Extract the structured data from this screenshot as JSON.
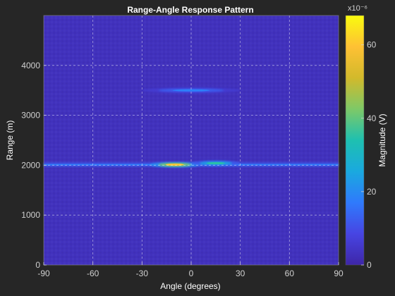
{
  "chart_data": {
    "type": "heatmap",
    "title": "Range-Angle Response Pattern",
    "xlabel": "Angle (degrees)",
    "ylabel": "Range (m)",
    "xlim": [
      -90,
      90
    ],
    "ylim": [
      0,
      5000
    ],
    "x_ticks": [
      -90,
      -60,
      -30,
      0,
      30,
      60,
      90
    ],
    "y_ticks": [
      0,
      1000,
      2000,
      3000,
      4000
    ],
    "grid": true,
    "colorbar": {
      "label": "Magnitude (V)",
      "exponent_label": "x10⁻⁶",
      "ticks": [
        0,
        20,
        40,
        60
      ],
      "clim": [
        0,
        68
      ],
      "colormap": [
        "#3e26a8",
        "#4745e3",
        "#2f7afc",
        "#1aa9df",
        "#1ec0b0",
        "#7ec967",
        "#d2b92b",
        "#fec134",
        "#f9fb0e"
      ]
    },
    "features": [
      {
        "name": "Target return near 2000 m",
        "range_m": 2010,
        "angle_deg": -10,
        "peak_magnitude": 60,
        "extent_deg": [
          -20,
          0
        ]
      },
      {
        "name": "Range sidelobe band",
        "range_m": 2040,
        "angle_deg": 15,
        "peak_magnitude": 35,
        "extent_deg": [
          5,
          25
        ]
      },
      {
        "name": "Return near 3500 m",
        "range_m": 3500,
        "angle_deg": 0,
        "peak_magnitude": 18,
        "extent_deg": [
          -20,
          20
        ]
      }
    ],
    "background_magnitude": 3
  }
}
